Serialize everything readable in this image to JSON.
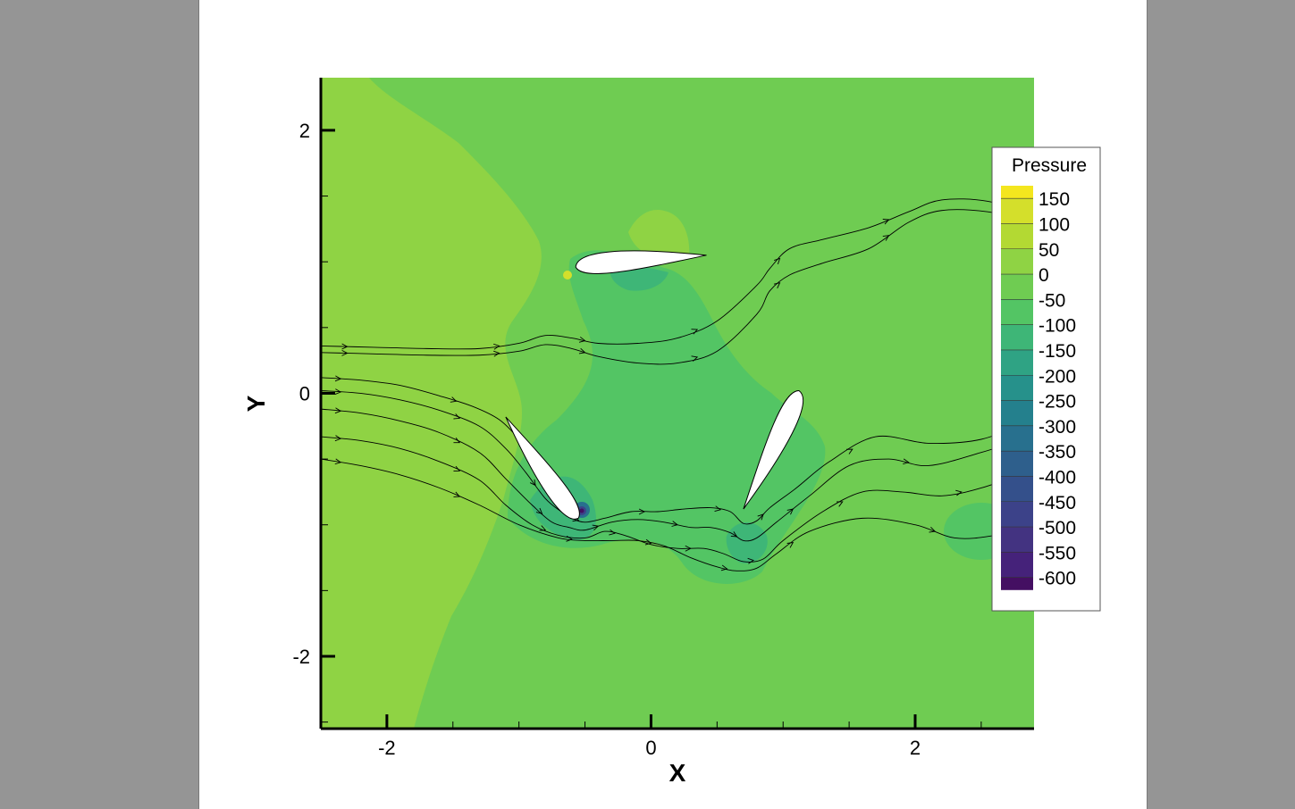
{
  "chart_data": {
    "type": "contour",
    "title": "",
    "xlabel": "X",
    "ylabel": "Y",
    "xlim": [
      -2.5,
      2.9
    ],
    "ylim": [
      -2.55,
      2.4
    ],
    "xticks": [
      -2,
      0,
      2
    ],
    "yticks": [
      -2,
      0,
      2
    ],
    "xtick_labels": [
      "-2",
      "0",
      "2"
    ],
    "ytick_labels": [
      "-2",
      "0",
      "2"
    ],
    "legend": {
      "title": "Pressure",
      "position": "right",
      "levels": [
        150,
        100,
        50,
        0,
        -50,
        -100,
        -150,
        -200,
        -250,
        -300,
        -350,
        -400,
        -450,
        -500,
        -550,
        -600
      ],
      "labels": [
        "150",
        "100",
        "50",
        "0",
        "-50",
        "-100",
        "-150",
        "-200",
        "-250",
        "-300",
        "-350",
        "-400",
        "-450",
        "-500",
        "-550",
        "-600"
      ],
      "colors": [
        "#f4e61e",
        "#d4df2b",
        "#b3d933",
        "#8fd344",
        "#6fcc52",
        "#53c564",
        "#3eb677",
        "#2fa384",
        "#26918b",
        "#24808d",
        "#28708e",
        "#2e5f8c",
        "#34508b",
        "#3c4289",
        "#433381",
        "#45227a",
        "#440f62"
      ]
    },
    "airfoils": [
      {
        "name": "upper",
        "leading_edge": [
          -0.57,
          0.96
        ],
        "trailing_edge": [
          0.42,
          1.05
        ]
      },
      {
        "name": "left",
        "leading_edge": [
          -0.55,
          -0.95
        ],
        "trailing_edge": [
          -1.1,
          -0.18
        ]
      },
      {
        "name": "right",
        "leading_edge": [
          1.12,
          0.02
        ],
        "trailing_edge": [
          0.7,
          -0.88
        ]
      }
    ],
    "streamlines": [
      {
        "x": [
          -2.5,
          -2.1,
          -1.7,
          -1.3,
          -1.0,
          -0.8,
          -0.6,
          -0.4,
          -0.1,
          0.2,
          0.5,
          0.8,
          0.9,
          1.05,
          1.3,
          1.65,
          1.95,
          2.2,
          2.55,
          2.9
        ],
        "y": [
          0.36,
          0.35,
          0.34,
          0.34,
          0.38,
          0.44,
          0.42,
          0.38,
          0.38,
          0.42,
          0.55,
          0.82,
          0.95,
          1.1,
          1.17,
          1.26,
          1.38,
          1.47,
          1.46,
          1.35
        ]
      },
      {
        "x": [
          -2.5,
          -2.1,
          -1.7,
          -1.3,
          -1.0,
          -0.8,
          -0.6,
          -0.4,
          -0.1,
          0.2,
          0.5,
          0.8,
          0.9,
          1.05,
          1.3,
          1.65,
          1.95,
          2.2,
          2.55,
          2.9
        ],
        "y": [
          0.31,
          0.3,
          0.29,
          0.29,
          0.32,
          0.37,
          0.34,
          0.28,
          0.23,
          0.23,
          0.32,
          0.6,
          0.78,
          0.9,
          0.99,
          1.1,
          1.3,
          1.39,
          1.38,
          1.3
        ]
      },
      {
        "x": [
          -2.5,
          -2.2,
          -1.9,
          -1.6,
          -1.35,
          -1.15,
          -1.0,
          -0.9,
          -0.8,
          -0.68,
          -0.6,
          -0.55
        ],
        "y": [
          0.12,
          0.1,
          0.06,
          -0.02,
          -0.1,
          -0.2,
          -0.35,
          -0.5,
          -0.68,
          -0.85,
          -0.92,
          -0.95
        ]
      },
      {
        "x": [
          -2.5,
          -2.2,
          -1.9,
          -1.6,
          -1.3,
          -1.1,
          -0.95,
          -0.8,
          -0.68,
          -0.6,
          -0.5,
          -0.35,
          -0.15,
          0.05,
          0.25,
          0.45,
          0.6,
          0.7,
          0.8,
          0.9,
          1.1,
          1.35,
          1.7,
          2.1,
          2.5,
          2.9
        ],
        "y": [
          0.02,
          0.0,
          -0.05,
          -0.13,
          -0.25,
          -0.42,
          -0.6,
          -0.8,
          -0.9,
          -0.95,
          -0.98,
          -0.95,
          -0.9,
          -0.9,
          -0.88,
          -0.87,
          -0.9,
          -0.99,
          -0.97,
          -0.87,
          -0.72,
          -0.52,
          -0.33,
          -0.38,
          -0.35,
          -0.2
        ]
      },
      {
        "x": [
          -2.5,
          -2.2,
          -1.9,
          -1.6,
          -1.3,
          -1.1,
          -0.9,
          -0.75,
          -0.62,
          -0.5,
          -0.3,
          -0.1,
          0.1,
          0.3,
          0.45,
          0.6,
          0.7,
          0.8,
          0.95,
          1.2,
          1.5,
          1.8,
          2.1,
          2.5,
          2.9
        ],
        "y": [
          -0.12,
          -0.15,
          -0.21,
          -0.3,
          -0.45,
          -0.65,
          -0.85,
          -0.98,
          -1.02,
          -1.04,
          -0.98,
          -0.96,
          -0.98,
          -1.02,
          -1.02,
          -1.06,
          -1.12,
          -1.1,
          -0.98,
          -0.78,
          -0.55,
          -0.5,
          -0.55,
          -0.45,
          -0.32
        ]
      },
      {
        "x": [
          -2.5,
          -2.2,
          -1.9,
          -1.6,
          -1.3,
          -1.1,
          -0.9,
          -0.7,
          -0.5,
          -0.35,
          -0.2,
          0.0,
          0.2,
          0.4,
          0.55,
          0.7,
          0.85,
          1.0,
          1.3,
          1.6,
          1.9,
          2.2,
          2.5,
          2.9
        ],
        "y": [
          -0.33,
          -0.36,
          -0.42,
          -0.52,
          -0.66,
          -0.85,
          -1.0,
          -1.08,
          -1.1,
          -1.05,
          -1.08,
          -1.15,
          -1.18,
          -1.18,
          -1.22,
          -1.28,
          -1.26,
          -1.12,
          -0.9,
          -0.75,
          -0.75,
          -0.78,
          -0.72,
          -0.58
        ]
      },
      {
        "x": [
          -2.5,
          -2.2,
          -1.9,
          -1.6,
          -1.3,
          -1.0,
          -0.7,
          -0.5,
          -0.3,
          -0.1,
          0.1,
          0.3,
          0.5,
          0.65,
          0.8,
          0.95,
          1.2,
          1.6,
          2.0,
          2.3,
          2.6,
          2.9
        ],
        "y": [
          -0.5,
          -0.55,
          -0.62,
          -0.72,
          -0.85,
          -1.0,
          -1.1,
          -1.12,
          -1.12,
          -1.12,
          -1.16,
          -1.25,
          -1.32,
          -1.35,
          -1.33,
          -1.22,
          -1.05,
          -0.95,
          -1.0,
          -1.1,
          -1.08,
          -1.0
        ]
      }
    ]
  }
}
